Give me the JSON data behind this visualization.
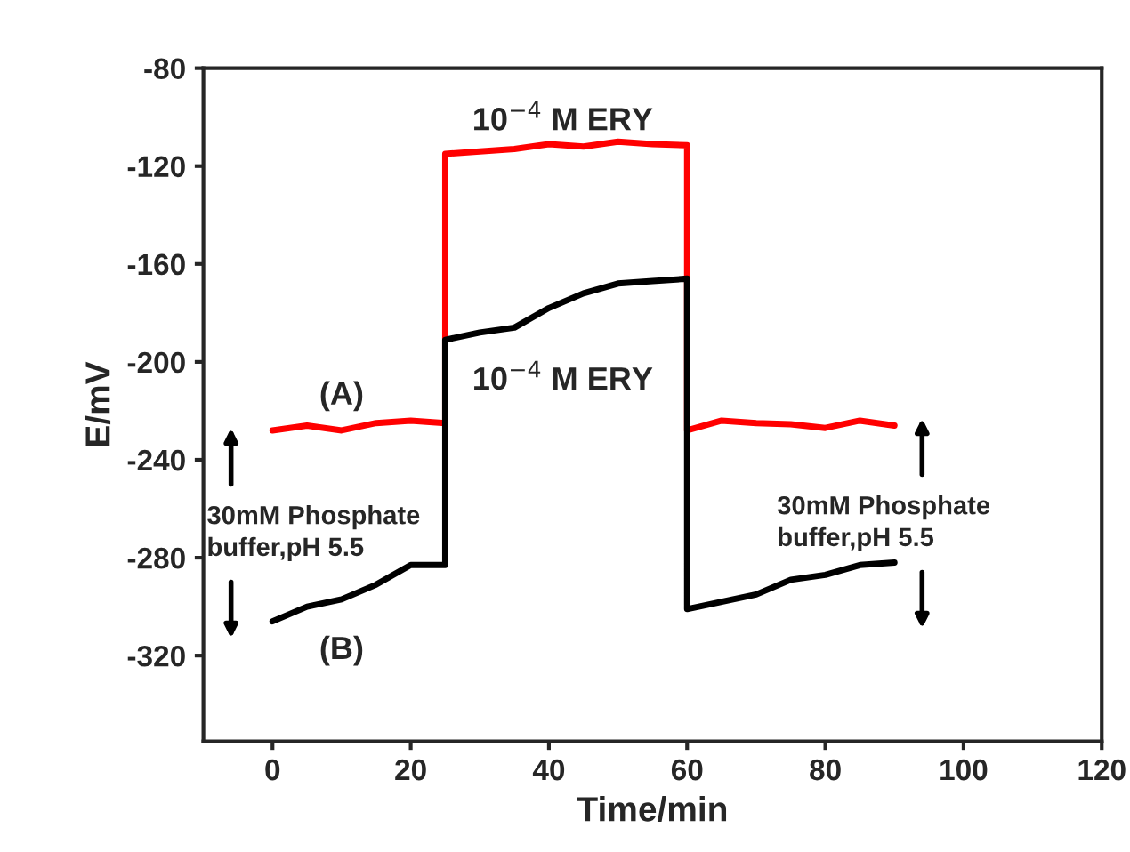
{
  "chart_data": {
    "type": "line",
    "xlabel": "Time/min",
    "ylabel": "E/mV",
    "xlim": [
      -10,
      120
    ],
    "xticks": [
      0,
      20,
      40,
      60,
      80,
      100,
      120
    ],
    "ylim": [
      -355,
      -80
    ],
    "yticks": [
      -80,
      -120,
      -160,
      -200,
      -240,
      -280,
      -320
    ],
    "grid": false,
    "legend": false,
    "marker": "none",
    "line_style": "solid",
    "series": [
      {
        "color": "#ff0000",
        "x": [
          0,
          5,
          10,
          15,
          20,
          25,
          25,
          30,
          35,
          40,
          45,
          50,
          55,
          60,
          60,
          65,
          70,
          75,
          80,
          85,
          90
        ],
        "values": [
          -228,
          -226,
          -228,
          -225,
          -224,
          -225,
          -115,
          -114,
          -113,
          -111,
          -112,
          -110,
          -111,
          -111.5,
          -228,
          -224,
          -225,
          -225.5,
          -227,
          -224,
          -226
        ]
      },
      {
        "color": "#000000",
        "x": [
          0,
          5,
          10,
          15,
          20,
          25,
          25,
          30,
          35,
          40,
          45,
          50,
          55,
          60,
          60,
          65,
          70,
          75,
          80,
          85,
          90
        ],
        "values": [
          -306,
          -300,
          -297,
          -291,
          -283,
          -283,
          -191,
          -188,
          -186,
          -178,
          -172,
          -168,
          -167,
          -166,
          -301,
          -298,
          -295,
          -289,
          -287,
          -283,
          -282
        ]
      }
    ],
    "annotations": [
      "10$^{−4}$ M ERY",
      "10$^{−4}$ M ERY",
      "(A)",
      "(B)",
      "30mM Phosphate\nbuffer,pH 5.5",
      "30mM Phosphate\nbuffer,pH 5.5"
    ]
  }
}
